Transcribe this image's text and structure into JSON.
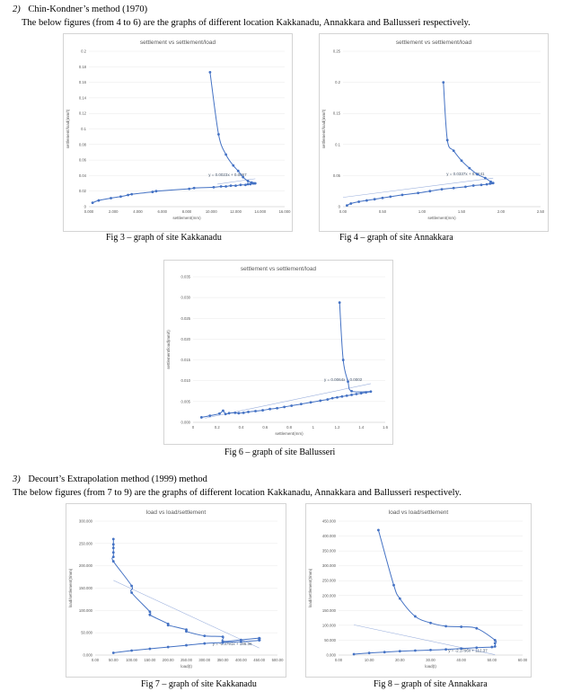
{
  "section2": {
    "number": "2)",
    "title": "Chin-Kondner’s method (1970)",
    "intro": "The below figures (from 4 to 6) are the graphs of different location Kakkanadu, Annakkara and Ballusseri respectively."
  },
  "section3": {
    "number": "3)",
    "title": "Decourt’s Extrapolation method (1999) method",
    "intro": "The below figures (from 7 to 9) are the graphs of different location Kakkanadu, Annakkara and Ballusseri respectively."
  },
  "captions": {
    "fig3": "Fig 3 – graph of site Kakkanadu",
    "fig4": "Fig 4 – graph of site Annakkara",
    "fig6": "Fig 6 – graph of site Ballusseri",
    "fig7": "Fig 7 – graph of site Kakkanadu",
    "fig8": "Fig 8 – graph of site Annakkara"
  },
  "colors": {
    "series": "#4472c4",
    "trend": "#9bb0dd"
  },
  "chart_data": [
    {
      "id": "c1",
      "type": "scatter",
      "title": "settlement vs settlement/load",
      "xlabel": "settlement(mm)",
      "ylabel": "settlement/load(mm/t)",
      "xlim": [
        0,
        16
      ],
      "ylim": [
        0,
        0.2
      ],
      "xticks": [
        "0.000",
        "2.000",
        "4.000",
        "6.000",
        "8.000",
        "10.000",
        "12.000",
        "14.000",
        "16.000"
      ],
      "yticks": [
        "0",
        "0.02",
        "0.04",
        "0.06",
        "0.08",
        "0.1",
        "0.12",
        "0.14",
        "0.16",
        "0.18",
        "0.2"
      ],
      "trendline": {
        "label": "y = 0.0023x + 0.0067",
        "x": [
          10.5,
          13.6
        ],
        "y": [
          0.029,
          0.036
        ]
      },
      "series": [
        {
          "x": [
            0.3,
            0.8,
            1.8,
            2.6,
            3.2,
            3.5,
            5.2,
            5.5,
            8.2,
            8.6,
            10.2,
            10.8,
            11.2,
            11.6,
            12.0,
            12.4,
            12.8,
            13.0,
            13.2,
            13.4,
            13.5,
            13.6,
            13.3,
            13.0,
            12.6,
            12.2,
            11.8,
            11.2,
            10.6,
            9.9
          ],
          "y": [
            0.005,
            0.008,
            0.011,
            0.013,
            0.015,
            0.016,
            0.019,
            0.02,
            0.023,
            0.024,
            0.025,
            0.026,
            0.026,
            0.027,
            0.027,
            0.028,
            0.028,
            0.029,
            0.029,
            0.03,
            0.03,
            0.03,
            0.031,
            0.033,
            0.038,
            0.046,
            0.053,
            0.067,
            0.093,
            0.173
          ]
        }
      ]
    },
    {
      "id": "c2",
      "type": "scatter",
      "title": "settlement vs settlement/load",
      "xlabel": "settlement(mm)",
      "ylabel": "settlement/load(mm/t)",
      "xlim": [
        0,
        2.5
      ],
      "ylim": [
        0,
        0.25
      ],
      "xticks": [
        "0.00",
        "0.50",
        "1.00",
        "1.50",
        "2.00",
        "2.50"
      ],
      "yticks": [
        "0",
        "0.05",
        "0.1",
        "0.15",
        "0.2",
        "0.25"
      ],
      "trendline": {
        "label": "y = 0.0337x + 0.0141",
        "x": [
          0,
          1.9
        ],
        "y": [
          0.015,
          0.046
        ]
      },
      "series": [
        {
          "x": [
            0.05,
            0.1,
            0.2,
            0.3,
            0.4,
            0.5,
            0.6,
            0.75,
            0.95,
            1.1,
            1.25,
            1.4,
            1.55,
            1.65,
            1.75,
            1.82,
            1.86,
            1.88,
            1.9,
            1.87,
            1.8,
            1.7,
            1.6,
            1.5,
            1.4,
            1.32,
            1.27
          ],
          "y": [
            0.002,
            0.005,
            0.008,
            0.01,
            0.012,
            0.014,
            0.016,
            0.019,
            0.022,
            0.025,
            0.028,
            0.03,
            0.032,
            0.034,
            0.035,
            0.036,
            0.037,
            0.038,
            0.038,
            0.04,
            0.046,
            0.052,
            0.062,
            0.074,
            0.09,
            0.107,
            0.2
          ]
        }
      ]
    },
    {
      "id": "c3",
      "type": "scatter",
      "title": "settlement vs settlement/load",
      "xlabel": "settlement(mm)",
      "ylabel": "settlement/load(mm/t)",
      "xlim": [
        0,
        1.6
      ],
      "ylim": [
        0,
        0.035
      ],
      "xticks": [
        "0",
        "0.2",
        "0.4",
        "0.6",
        "0.8",
        "1",
        "1.2",
        "1.4",
        "1.6"
      ],
      "yticks": [
        "0.000",
        "0.005",
        "0.010",
        "0.015",
        "0.020",
        "0.025",
        "0.030",
        "0.035"
      ],
      "trendline": {
        "label": "y = 0.0064x + 0.0002",
        "x": [
          0.1,
          1.48
        ],
        "y": [
          0.001,
          0.0093
        ]
      },
      "series": [
        {
          "x": [
            0.07,
            0.14,
            0.22,
            0.25,
            0.27,
            0.3,
            0.35,
            0.38,
            0.42,
            0.46,
            0.52,
            0.58,
            0.64,
            0.7,
            0.76,
            0.82,
            0.9,
            0.98,
            1.06,
            1.12,
            1.16,
            1.2,
            1.24,
            1.28,
            1.32,
            1.36,
            1.4,
            1.44,
            1.48,
            1.32,
            1.29,
            1.25,
            1.22
          ],
          "y": [
            0.0012,
            0.0016,
            0.0021,
            0.0028,
            0.002,
            0.0022,
            0.0023,
            0.0022,
            0.0023,
            0.0025,
            0.0027,
            0.0029,
            0.0032,
            0.0034,
            0.0037,
            0.004,
            0.0044,
            0.0048,
            0.0052,
            0.0055,
            0.0058,
            0.006,
            0.0062,
            0.0064,
            0.0066,
            0.0068,
            0.007,
            0.0072,
            0.0074,
            0.0075,
            0.0098,
            0.015,
            0.0288
          ]
        }
      ]
    },
    {
      "id": "c4",
      "type": "scatter",
      "title": "load vs load/settlement",
      "xlabel": "load(t)",
      "ylabel": "load/settlement(t/mm)",
      "xlim": [
        0,
        500
      ],
      "ylim": [
        0,
        300
      ],
      "xticks": [
        "0.00",
        "50.00",
        "100.00",
        "150.00",
        "200.00",
        "250.00",
        "300.00",
        "350.00",
        "400.00",
        "450.00",
        "500.00"
      ],
      "yticks": [
        "0.000",
        "50.000",
        "100.000",
        "150.000",
        "200.000",
        "250.000",
        "300.000"
      ],
      "trendline": {
        "label": "y = -0.3791x + 186.36",
        "x": [
          50,
          450
        ],
        "y": [
          167.4,
          15.8
        ]
      },
      "series": [
        {
          "x": [
            50,
            100,
            150,
            200,
            250,
            300,
            350,
            400,
            450,
            450,
            450,
            450,
            400,
            350,
            350,
            300,
            250,
            250,
            200,
            200,
            150,
            150,
            100,
            100,
            50,
            50,
            50,
            50,
            50,
            50
          ],
          "y": [
            5,
            10,
            14,
            18,
            22,
            26,
            28,
            30,
            33,
            35,
            37,
            38,
            34,
            31,
            41,
            43,
            53,
            57,
            67,
            70,
            90,
            97,
            140,
            155,
            210,
            220,
            230,
            240,
            248,
            260
          ]
        }
      ]
    },
    {
      "id": "c5",
      "type": "scatter",
      "title": "load vs load/settlement",
      "xlabel": "load(t)",
      "ylabel": "load/settlement(t/mm)",
      "xlim": [
        0,
        60
      ],
      "ylim": [
        0,
        450
      ],
      "xticks": [
        "0.00",
        "10.00",
        "20.00",
        "30.00",
        "40.00",
        "50.00",
        "60.00"
      ],
      "yticks": [
        "0.000",
        "50.000",
        "100.000",
        "150.000",
        "200.000",
        "250.000",
        "300.000",
        "350.000",
        "400.000",
        "450.000"
      ],
      "trendline": {
        "label": "y = -2.1796x + 112.37",
        "x": [
          5,
          51
        ],
        "y": [
          101.5,
          1.2
        ]
      },
      "series": [
        {
          "x": [
            5,
            10,
            15,
            20,
            25,
            30,
            35,
            40,
            45,
            50,
            51,
            51,
            51,
            45,
            40,
            35,
            30,
            25,
            20,
            18,
            13
          ],
          "y": [
            3,
            7,
            10,
            13,
            15,
            17,
            19,
            22,
            25,
            27,
            29,
            40,
            50,
            90,
            95,
            97,
            108,
            130,
            190,
            235,
            420
          ]
        }
      ]
    }
  ]
}
